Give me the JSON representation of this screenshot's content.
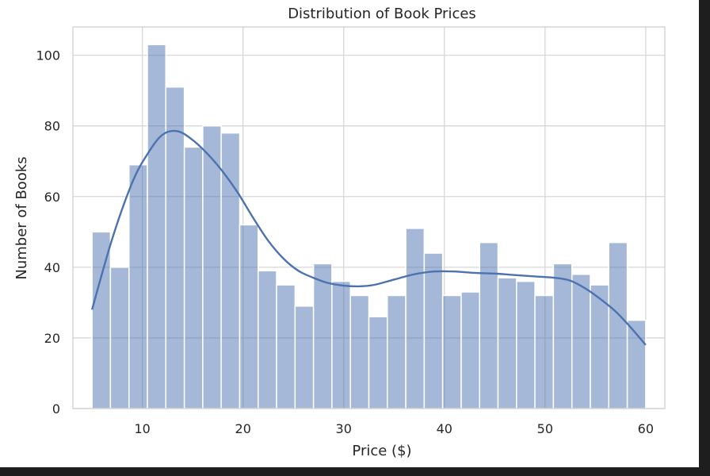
{
  "chart_data": {
    "type": "bar",
    "title": "Distribution of Book Prices",
    "xlabel": "Price ($)",
    "ylabel": "Number of Books",
    "xlim": [
      3.1,
      61.9
    ],
    "ylim": [
      0,
      108
    ],
    "xticks": [
      10,
      20,
      30,
      40,
      50,
      60
    ],
    "yticks": [
      0,
      20,
      40,
      60,
      80,
      100
    ],
    "grid": true,
    "bar_color": "#4c72b0",
    "line_color": "#4c72b0",
    "bins": [
      {
        "x0": 5.0,
        "x1": 6.83,
        "count": 50
      },
      {
        "x0": 6.83,
        "x1": 8.67,
        "count": 40
      },
      {
        "x0": 8.67,
        "x1": 10.5,
        "count": 69
      },
      {
        "x0": 10.5,
        "x1": 12.33,
        "count": 103
      },
      {
        "x0": 12.33,
        "x1": 14.17,
        "count": 91
      },
      {
        "x0": 14.17,
        "x1": 16.0,
        "count": 74
      },
      {
        "x0": 16.0,
        "x1": 17.83,
        "count": 80
      },
      {
        "x0": 17.83,
        "x1": 19.67,
        "count": 78
      },
      {
        "x0": 19.67,
        "x1": 21.5,
        "count": 52
      },
      {
        "x0": 21.5,
        "x1": 23.33,
        "count": 39
      },
      {
        "x0": 23.33,
        "x1": 25.17,
        "count": 35
      },
      {
        "x0": 25.17,
        "x1": 27.0,
        "count": 29
      },
      {
        "x0": 27.0,
        "x1": 28.83,
        "count": 41
      },
      {
        "x0": 28.83,
        "x1": 30.67,
        "count": 36
      },
      {
        "x0": 30.67,
        "x1": 32.5,
        "count": 32
      },
      {
        "x0": 32.5,
        "x1": 34.33,
        "count": 26
      },
      {
        "x0": 34.33,
        "x1": 36.17,
        "count": 32
      },
      {
        "x0": 36.17,
        "x1": 38.0,
        "count": 51
      },
      {
        "x0": 38.0,
        "x1": 39.83,
        "count": 44
      },
      {
        "x0": 39.83,
        "x1": 41.67,
        "count": 32
      },
      {
        "x0": 41.67,
        "x1": 43.5,
        "count": 33
      },
      {
        "x0": 43.5,
        "x1": 45.33,
        "count": 47
      },
      {
        "x0": 45.33,
        "x1": 47.17,
        "count": 37
      },
      {
        "x0": 47.17,
        "x1": 49.0,
        "count": 36
      },
      {
        "x0": 49.0,
        "x1": 50.83,
        "count": 32
      },
      {
        "x0": 50.83,
        "x1": 52.67,
        "count": 41
      },
      {
        "x0": 52.67,
        "x1": 54.5,
        "count": 38
      },
      {
        "x0": 54.5,
        "x1": 56.33,
        "count": 35
      },
      {
        "x0": 56.33,
        "x1": 58.17,
        "count": 47
      },
      {
        "x0": 58.17,
        "x1": 60.0,
        "count": 25
      }
    ],
    "kde": {
      "x": [
        5,
        7,
        9,
        10.5,
        12,
        13.5,
        15,
        16.5,
        18,
        19.5,
        21,
        22.5,
        24,
        25.5,
        27,
        28.5,
        30,
        31.5,
        33,
        35,
        37,
        39,
        41,
        43,
        45,
        47,
        49,
        51,
        52.5,
        54,
        55.5,
        57,
        58.5,
        60
      ],
      "y": [
        28,
        48,
        64,
        72,
        77.5,
        78.5,
        76,
        72,
        67,
        61,
        54,
        47.5,
        42.5,
        39,
        37,
        35.5,
        34.8,
        34.6,
        35,
        36.5,
        38,
        38.8,
        38.8,
        38.4,
        38.2,
        37.8,
        37.4,
        37,
        36.2,
        34,
        31,
        27.5,
        23,
        18
      ]
    }
  }
}
